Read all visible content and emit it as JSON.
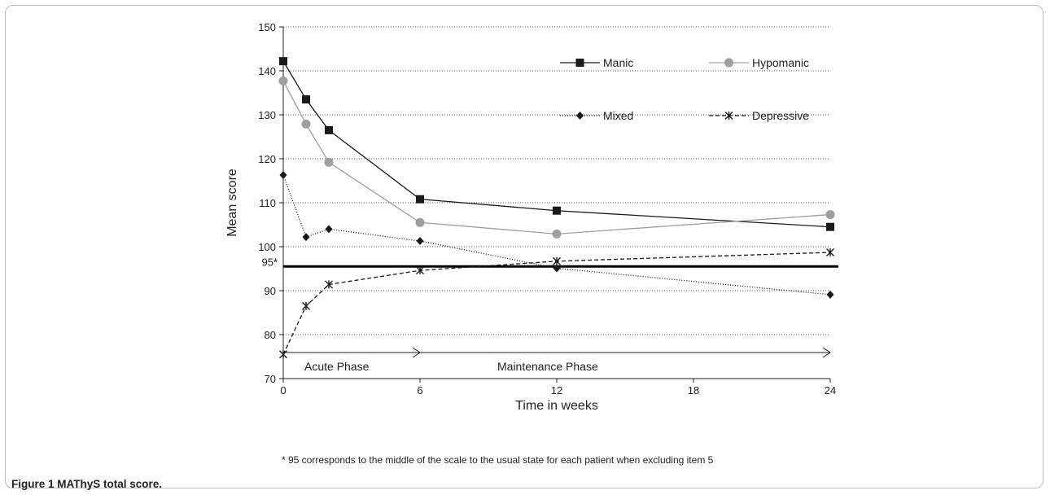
{
  "chart_data": {
    "type": "line",
    "xlabel": "Time in weeks",
    "ylabel": "Mean score",
    "x_ticks": [
      0,
      6,
      12,
      18,
      24
    ],
    "y_ticks": [
      70,
      80,
      90,
      100,
      110,
      120,
      130,
      140,
      150
    ],
    "xlim": [
      0,
      24
    ],
    "ylim": [
      70,
      150
    ],
    "grid": "horizontal dotted",
    "legend_position": "upper-right",
    "reference_line": {
      "y": 95.5,
      "label": "95*"
    },
    "phases": [
      {
        "label": "Acute Phase",
        "from": 0,
        "to": 6
      },
      {
        "label": "Maintenance Phase",
        "from": 6,
        "to": 24
      }
    ],
    "series": [
      {
        "name": "Manic",
        "color": "#1a1a1a",
        "marker": "square",
        "dash": "solid",
        "x": [
          0,
          1,
          2,
          6,
          12,
          24
        ],
        "y": [
          142.2,
          133.5,
          126.5,
          110.8,
          108.2,
          104.5
        ]
      },
      {
        "name": "Hypomanic",
        "color": "#9e9e9e",
        "marker": "circle",
        "dash": "solid",
        "x": [
          0,
          1,
          2,
          6,
          12,
          24
        ],
        "y": [
          137.7,
          127.9,
          119.2,
          105.5,
          102.9,
          107.3
        ]
      },
      {
        "name": "Mixed",
        "color": "#1a1a1a",
        "marker": "diamond",
        "dash": "dotted",
        "x": [
          0,
          1,
          2,
          6,
          12,
          24
        ],
        "y": [
          116.3,
          102.2,
          104.0,
          101.3,
          95.1,
          89.1
        ]
      },
      {
        "name": "Depressive",
        "color": "#1a1a1a",
        "marker": "star",
        "dash": "dashed",
        "x": [
          0,
          1,
          2,
          6,
          12,
          24
        ],
        "y": [
          75.5,
          86.5,
          91.4,
          94.6,
          96.7,
          98.7
        ]
      }
    ]
  },
  "footnote": "* 95 corresponds to the middle of the scale to the usual state for each patient when excluding item 5",
  "caption": {
    "label": "Figure 1",
    "title": "MAThyS total score."
  }
}
